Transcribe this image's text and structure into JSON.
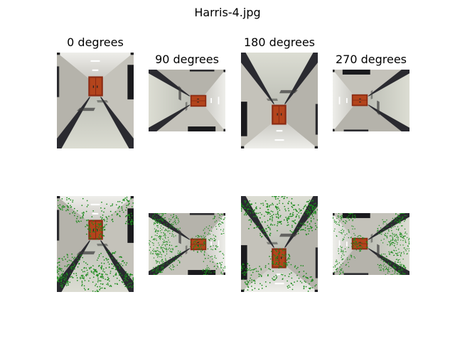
{
  "figure": {
    "title": "Harris-4.jpg",
    "panels": [
      {
        "label": "0 degrees",
        "rotation": 0
      },
      {
        "label": "90 degrees",
        "rotation": 90
      },
      {
        "label": "180 degrees",
        "rotation": 180
      },
      {
        "label": "270 degrees",
        "rotation": 270
      }
    ],
    "keypoint_color": "#1a8a1a"
  }
}
